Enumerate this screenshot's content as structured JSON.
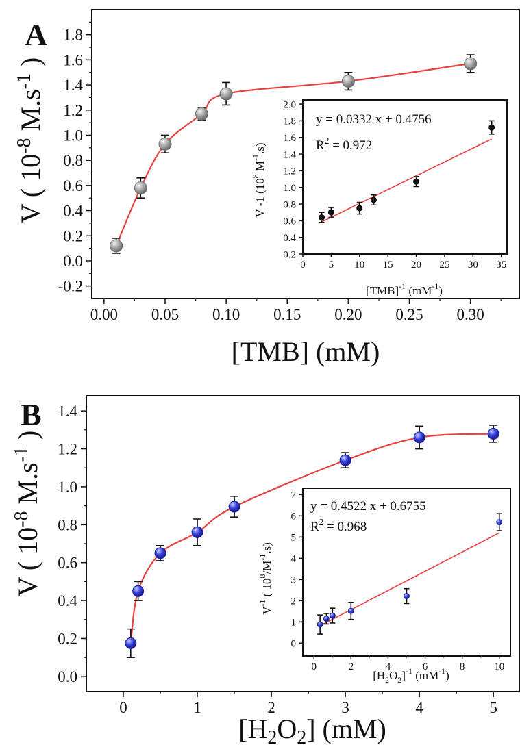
{
  "panels": [
    {
      "id": "A",
      "letter": "A",
      "x_axis": {
        "title": "[TMB] (mM)",
        "xlim": [
          -0.01,
          0.34
        ],
        "ticks": [
          0.0,
          0.05,
          0.1,
          0.15,
          0.2,
          0.25,
          0.3
        ],
        "tick_labels": [
          "0.00",
          "0.05",
          "0.10",
          "0.15",
          "0.20",
          "0.25",
          "0.30"
        ]
      },
      "y_axis": {
        "title_prefix": "V ( 10",
        "title_exp1": "-8",
        "title_mid": " M.s",
        "title_exp2": "-1",
        "title_suffix": " )",
        "ylim": [
          -0.3,
          2.0
        ],
        "ticks": [
          -0.2,
          0.0,
          0.2,
          0.4,
          0.6,
          0.8,
          1.0,
          1.2,
          1.4,
          1.6,
          1.8
        ],
        "tick_labels": [
          "-0.2",
          "0.0",
          "0.2",
          "0.4",
          "0.6",
          "0.8",
          "1.0",
          "1.2",
          "1.4",
          "1.6",
          "1.8"
        ]
      },
      "colors": {
        "marker": "#9a9a9a",
        "marker_edge": "#6f6f6f",
        "fit_line": "#e8413e"
      },
      "chart_data": {
        "type": "scatter",
        "x": [
          0.01,
          0.03,
          0.05,
          0.08,
          0.1,
          0.2,
          0.3
        ],
        "y": [
          0.12,
          0.58,
          0.93,
          1.17,
          1.33,
          1.43,
          1.57
        ],
        "error": [
          0.06,
          0.08,
          0.07,
          0.05,
          0.09,
          0.07,
          0.07
        ],
        "fit": "michaelis-menten"
      },
      "inset": {
        "equation": "y = 0.0332 x + 0.4756",
        "r2_prefix": "R",
        "r2_exp": "2",
        "r2_value": " = 0.972",
        "x_axis": {
          "title_prefix": "[TMB]",
          "title_exp": "-1",
          "title_unit_prefix": "  (mM",
          "title_unit_exp": "-1",
          "title_unit_suffix": ")",
          "xlim": [
            0,
            36
          ],
          "ticks": [
            0,
            5,
            10,
            15,
            20,
            25,
            30,
            35
          ],
          "tick_labels": [
            "0",
            "5",
            "10",
            "15",
            "20",
            "25",
            "30",
            "35"
          ]
        },
        "y_axis": {
          "title_prefix": "V -1 (10",
          "title_exp1": "8",
          "title_mid": "  M",
          "title_exp2": "-1",
          "title_suffix": ".s)",
          "ylim": [
            0.2,
            2.05
          ],
          "ticks": [
            0.2,
            0.4,
            0.6,
            0.8,
            1.0,
            1.2,
            1.4,
            1.6,
            1.8,
            2.0
          ],
          "tick_labels": [
            "0.2",
            "0.4",
            "0.6",
            "0.8",
            "1.0",
            "1.2",
            "1.4",
            "1.6",
            "1.8",
            "2.0"
          ]
        },
        "colors": {
          "marker": "#111111",
          "fit_line": "#e8413e"
        },
        "chart_data": {
          "type": "scatter",
          "x": [
            3.33,
            5,
            10,
            12.5,
            20,
            33.3
          ],
          "y": [
            0.64,
            0.7,
            0.75,
            0.85,
            1.07,
            1.72
          ],
          "error": [
            0.06,
            0.06,
            0.07,
            0.06,
            0.06,
            0.08
          ],
          "fit": {
            "slope": 0.0332,
            "intercept": 0.4756,
            "x_range": [
              3.33,
              33.3
            ]
          }
        }
      }
    },
    {
      "id": "B",
      "letter": "B",
      "x_axis": {
        "title_prefix": "[H",
        "title_sub1": "2",
        "title_mid": "O",
        "title_sub2": "2",
        "title_suffix": "] (mM)",
        "xlim": [
          -0.5,
          5.35
        ],
        "ticks": [
          0,
          1,
          2,
          3,
          4,
          5
        ],
        "tick_labels": [
          "0",
          "1",
          "2",
          "3",
          "4",
          "5"
        ]
      },
      "y_axis": {
        "title_prefix": "V ( 10",
        "title_exp1": "-8",
        "title_mid": " M.s",
        "title_exp2": "-1",
        "title_suffix": " )",
        "ylim": [
          -0.08,
          1.48
        ],
        "ticks": [
          0.0,
          0.2,
          0.4,
          0.6,
          0.8,
          1.0,
          1.2,
          1.4
        ],
        "tick_labels": [
          "0.0",
          "0.2",
          "0.4",
          "0.6",
          "0.8",
          "1.0",
          "1.2",
          "1.4"
        ]
      },
      "colors": {
        "marker": "#2f3cd8",
        "marker_edge": "#1a2290",
        "fit_line": "#e8413e"
      },
      "chart_data": {
        "type": "scatter",
        "x": [
          0.1,
          0.2,
          0.5,
          1.0,
          1.5,
          3.0,
          4.0,
          5.0
        ],
        "y": [
          0.175,
          0.45,
          0.65,
          0.76,
          0.895,
          1.14,
          1.26,
          1.28
        ],
        "error": [
          0.075,
          0.05,
          0.04,
          0.07,
          0.055,
          0.04,
          0.06,
          0.045
        ],
        "fit": "saturation"
      },
      "inset": {
        "equation": "y = 0.4522 x + 0.6755",
        "r2_prefix": "R",
        "r2_exp": "2",
        "r2_value": " = 0.968",
        "x_axis": {
          "title_prefix": "[H",
          "title_sub1": "2",
          "title_mid": "O",
          "title_sub2": "2",
          "title_close": "]",
          "title_exp": "-1",
          "title_unit_prefix": "  (mM",
          "title_unit_exp": "-1",
          "title_unit_suffix": ")",
          "xlim": [
            -0.6,
            10.6
          ],
          "ticks": [
            0,
            2,
            4,
            6,
            8,
            10
          ],
          "tick_labels": [
            "0",
            "2",
            "4",
            "6",
            "8",
            "10"
          ]
        },
        "y_axis": {
          "title_prefix": "V",
          "title_exp0": "-1",
          "title_mid1": " ( 10",
          "title_exp1": "8",
          "title_mid2": "/M",
          "title_exp2": "-1",
          "title_suffix": ".s)",
          "ylim": [
            -0.6,
            7.3
          ],
          "ticks": [
            0,
            1,
            2,
            3,
            4,
            5,
            6,
            7
          ],
          "tick_labels": [
            "0",
            "1",
            "2",
            "3",
            "4",
            "5",
            "6",
            "7"
          ]
        },
        "colors": {
          "marker": "#2f3cd8",
          "fit_line": "#e8413e"
        },
        "chart_data": {
          "type": "scatter",
          "x": [
            0.33,
            0.67,
            1.0,
            2.0,
            5.0,
            10.0
          ],
          "y": [
            0.88,
            1.15,
            1.3,
            1.52,
            2.22,
            5.7
          ],
          "error": [
            0.45,
            0.25,
            0.35,
            0.4,
            0.35,
            0.4
          ],
          "fit": {
            "slope": 0.4522,
            "intercept": 0.6755,
            "x_range": [
              0.3,
              10.0
            ]
          }
        }
      }
    }
  ]
}
